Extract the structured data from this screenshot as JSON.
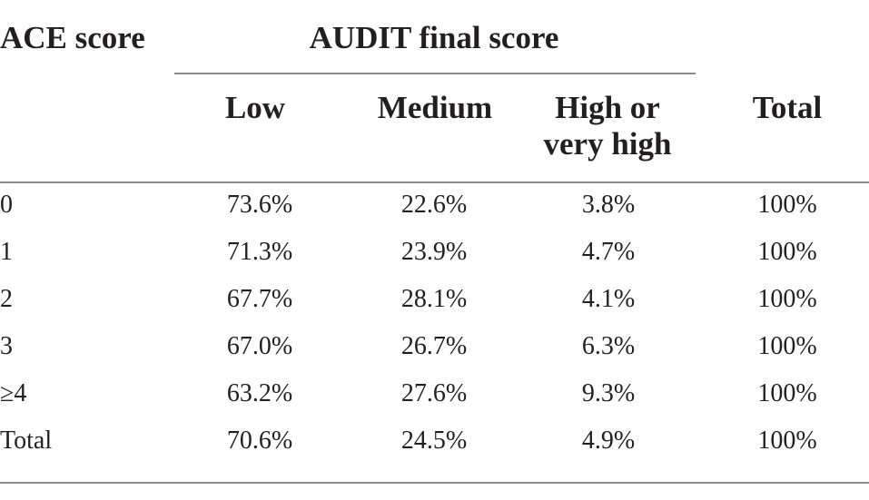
{
  "table": {
    "row_header_label": "ACE score",
    "group_header": "AUDIT final score",
    "columns": {
      "low": "Low",
      "medium": "Medium",
      "high": "High or very high",
      "total": "Total"
    },
    "rows": [
      {
        "score": "0",
        "low": "73.6%",
        "medium": "22.6%",
        "high": "3.8%",
        "total": "100%"
      },
      {
        "score": "1",
        "low": "71.3%",
        "medium": "23.9%",
        "high": "4.7%",
        "total": "100%"
      },
      {
        "score": "2",
        "low": "67.7%",
        "medium": "28.1%",
        "high": "4.1%",
        "total": "100%"
      },
      {
        "score": "3",
        "low": "67.0%",
        "medium": "26.7%",
        "high": "6.3%",
        "total": "100%"
      },
      {
        "score": "≥4",
        "low": "63.2%",
        "medium": "27.6%",
        "high": "9.3%",
        "total": "100%"
      },
      {
        "score": "Total",
        "low": "70.6%",
        "medium": "24.5%",
        "high": "4.9%",
        "total": "100%"
      }
    ]
  }
}
